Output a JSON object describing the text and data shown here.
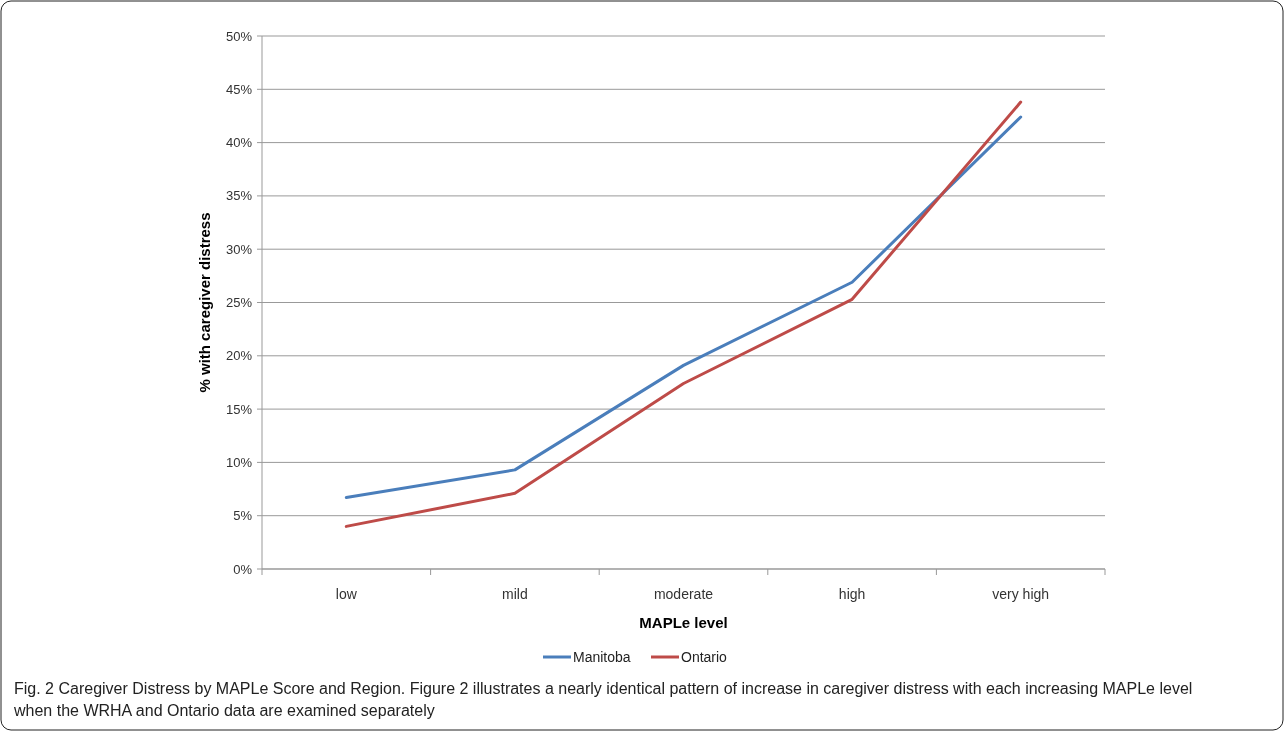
{
  "chart_data": {
    "type": "line",
    "categories": [
      "low",
      "mild",
      "moderate",
      "high",
      "very high"
    ],
    "series": [
      {
        "name": "Manitoba",
        "color": "#4a7ebb",
        "values": [
          6.7,
          9.3,
          19.1,
          26.9,
          42.4
        ]
      },
      {
        "name": "Ontario",
        "color": "#be4b48",
        "values": [
          4.0,
          7.1,
          17.4,
          25.3,
          43.8
        ]
      }
    ],
    "xlabel": "MAPLe level",
    "ylabel": "% with caregiver distress",
    "ylim": [
      0,
      50
    ],
    "yticks": [
      {
        "value": 0,
        "label": "0%"
      },
      {
        "value": 5,
        "label": "5%"
      },
      {
        "value": 10,
        "label": "10%"
      },
      {
        "value": 15,
        "label": "15%"
      },
      {
        "value": 20,
        "label": "20%"
      },
      {
        "value": 25,
        "label": "25%"
      },
      {
        "value": 30,
        "label": "30%"
      },
      {
        "value": 35,
        "label": "35%"
      },
      {
        "value": 40,
        "label": "40%"
      },
      {
        "value": 45,
        "label": "45%"
      },
      {
        "value": 50,
        "label": "50%"
      }
    ],
    "grid": "y",
    "legend": "bottom",
    "marker": "none",
    "line_style": "solid",
    "annotations": [
      "Fig. 2 Caregiver Distress by MAPLe Score and Region. Figure 2 illustrates a nearly identical pattern of increase in caregiver distress with each increasing MAPLe level when the WRHA and Ontario data are examined separately"
    ]
  }
}
